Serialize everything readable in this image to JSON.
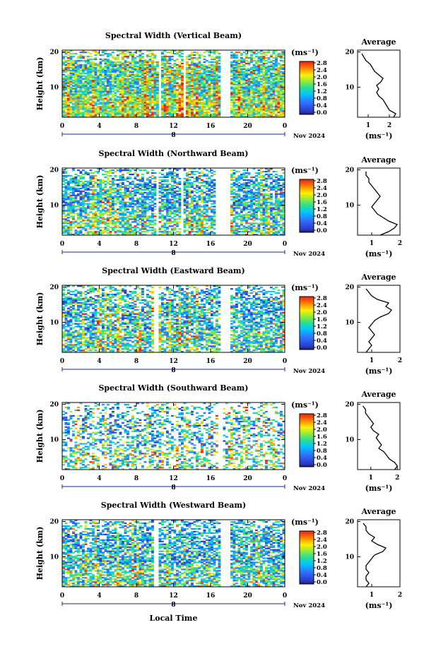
{
  "figure": {
    "date_label": "Nov 2024",
    "day_label": "8",
    "xlabel": "Local Time",
    "ylabel": "Height (km)",
    "unit": "(ms⁻¹)",
    "avg_title": "Average",
    "avg_xlabel": "(ms⁻¹)"
  },
  "chart_data": [
    {
      "type": "heatmap",
      "title": "Spectral Width (Vertical Beam)",
      "xlabel": "",
      "ylabel": "Height (km)",
      "xticks": [
        "0",
        "4",
        "8",
        "12",
        "16",
        "20",
        "0"
      ],
      "yticks": [
        "10",
        "20"
      ],
      "xlim": [
        0,
        24
      ],
      "ylim": [
        1.5,
        20.5
      ],
      "colorbar": {
        "ticks": [
          "2.8",
          "2.4",
          "2.0",
          "1.6",
          "1.2",
          "0.8",
          "0.4",
          "0.0"
        ],
        "range": [
          0,
          3
        ]
      },
      "gaps": [
        [
          10.4,
          10.7
        ],
        [
          13.2,
          13.4
        ],
        [
          17.1,
          18.0
        ]
      ],
      "average": {
        "xticks": [
          "1",
          "2"
        ],
        "xlim": [
          0.5,
          2.5
        ],
        "yticks": [
          "10",
          "20"
        ],
        "profile": [
          [
            2.2,
            1.5
          ],
          [
            2.3,
            2.5
          ],
          [
            2.0,
            3.5
          ],
          [
            1.9,
            4.5
          ],
          [
            1.8,
            5.5
          ],
          [
            1.7,
            6.5
          ],
          [
            1.5,
            7.5
          ],
          [
            1.4,
            8.5
          ],
          [
            1.5,
            9.5
          ],
          [
            1.4,
            10.5
          ],
          [
            1.6,
            11.5
          ],
          [
            1.7,
            12.5
          ],
          [
            1.5,
            13.5
          ],
          [
            1.3,
            14.5
          ],
          [
            1.2,
            15.5
          ],
          [
            1.1,
            16.5
          ],
          [
            0.9,
            17.5
          ],
          [
            0.8,
            18.5
          ],
          [
            0.7,
            19.5
          ]
        ]
      }
    },
    {
      "type": "heatmap",
      "title": "Spectral Width (Northward Beam)",
      "xlabel": "",
      "ylabel": "Height (km)",
      "xticks": [
        "0",
        "4",
        "8",
        "12",
        "16",
        "20",
        "0"
      ],
      "yticks": [
        "10",
        "20"
      ],
      "xlim": [
        0,
        24
      ],
      "ylim": [
        1.5,
        20.5
      ],
      "colorbar": {
        "ticks": [
          "2.8",
          "2.4",
          "2.0",
          "1.6",
          "1.2",
          "0.8",
          "0.4",
          "0.0"
        ],
        "range": [
          0,
          3
        ]
      },
      "gaps": [
        [
          10.1,
          10.4
        ],
        [
          12.8,
          13.0
        ],
        [
          16.6,
          18.2
        ]
      ],
      "average": {
        "xticks": [
          "1",
          "2"
        ],
        "xlim": [
          0.5,
          2.0
        ],
        "yticks": [
          "10",
          "20"
        ],
        "profile": [
          [
            1.3,
            1.5
          ],
          [
            1.6,
            2.5
          ],
          [
            1.8,
            3.5
          ],
          [
            1.9,
            4.5
          ],
          [
            1.6,
            5.5
          ],
          [
            1.4,
            6.5
          ],
          [
            1.2,
            7.5
          ],
          [
            1.1,
            8.5
          ],
          [
            1.0,
            9.5
          ],
          [
            1.1,
            10.5
          ],
          [
            1.2,
            11.5
          ],
          [
            1.3,
            12.5
          ],
          [
            1.2,
            13.5
          ],
          [
            1.1,
            14.5
          ],
          [
            1.0,
            15.5
          ],
          [
            0.9,
            16.5
          ],
          [
            0.9,
            17.5
          ],
          [
            0.8,
            18.5
          ],
          [
            0.8,
            19.5
          ]
        ]
      }
    },
    {
      "type": "heatmap",
      "title": "Spectral Width (Eastward Beam)",
      "xlabel": "",
      "ylabel": "Height (km)",
      "xticks": [
        "0",
        "4",
        "8",
        "12",
        "16",
        "20",
        "0"
      ],
      "yticks": [
        "10",
        "20"
      ],
      "xlim": [
        0,
        24
      ],
      "ylim": [
        1.5,
        20.5
      ],
      "colorbar": {
        "ticks": [
          "2.8",
          "2.4",
          "2.0",
          "1.6",
          "1.2",
          "0.8",
          "0.4",
          "0.0"
        ],
        "range": [
          0,
          3
        ]
      },
      "gaps": [
        [
          10.0,
          10.3
        ],
        [
          13.0,
          13.2
        ],
        [
          17.2,
          18.0
        ]
      ],
      "average": {
        "xticks": [
          "1",
          "2"
        ],
        "xlim": [
          0.5,
          2.0
        ],
        "yticks": [
          "10",
          "20"
        ],
        "profile": [
          [
            0.8,
            1.5
          ],
          [
            0.9,
            2.5
          ],
          [
            1.0,
            3.5
          ],
          [
            0.9,
            4.5
          ],
          [
            1.0,
            5.5
          ],
          [
            1.1,
            6.5
          ],
          [
            1.0,
            7.5
          ],
          [
            0.9,
            8.5
          ],
          [
            1.0,
            9.5
          ],
          [
            1.1,
            10.5
          ],
          [
            1.3,
            11.5
          ],
          [
            1.6,
            12.5
          ],
          [
            1.7,
            13.5
          ],
          [
            1.5,
            14.5
          ],
          [
            1.6,
            15.5
          ],
          [
            1.2,
            16.5
          ],
          [
            1.0,
            17.5
          ],
          [
            0.9,
            18.5
          ],
          [
            0.8,
            19.5
          ]
        ]
      }
    },
    {
      "type": "heatmap",
      "title": "Spectral Width (Southward Beam)",
      "xlabel": "",
      "ylabel": "Height (km)",
      "xticks": [
        "0",
        "4",
        "8",
        "12",
        "16",
        "20",
        "0"
      ],
      "yticks": [
        "10",
        "20"
      ],
      "xlim": [
        0,
        24
      ],
      "ylim": [
        1.5,
        20.5
      ],
      "colorbar": {
        "ticks": [
          "2.8",
          "2.4",
          "2.0",
          "1.6",
          "1.2",
          "0.8",
          "0.4",
          "0.0"
        ],
        "range": [
          0,
          3
        ]
      },
      "gaps": [
        [
          16.7,
          17.4
        ]
      ],
      "average": {
        "xticks": [
          "1",
          "2"
        ],
        "xlim": [
          0.5,
          2.1
        ],
        "yticks": [
          "10",
          "20"
        ],
        "profile": [
          [
            1.9,
            1.5
          ],
          [
            2.0,
            2.5
          ],
          [
            1.9,
            3.5
          ],
          [
            1.7,
            4.5
          ],
          [
            1.6,
            5.5
          ],
          [
            1.5,
            6.5
          ],
          [
            1.3,
            7.5
          ],
          [
            1.4,
            8.5
          ],
          [
            1.3,
            9.5
          ],
          [
            1.2,
            10.5
          ],
          [
            1.3,
            11.5
          ],
          [
            1.1,
            12.5
          ],
          [
            1.0,
            13.5
          ],
          [
            1.1,
            14.5
          ],
          [
            1.0,
            15.5
          ],
          [
            0.9,
            16.5
          ],
          [
            0.8,
            17.5
          ],
          [
            0.8,
            18.5
          ],
          [
            0.7,
            19.5
          ]
        ]
      }
    },
    {
      "type": "heatmap",
      "title": "Spectral Width (Westward Beam)",
      "xlabel": "Local Time",
      "ylabel": "Height (km)",
      "xticks": [
        "0",
        "4",
        "8",
        "12",
        "16",
        "20",
        "0"
      ],
      "yticks": [
        "10",
        "20"
      ],
      "xlim": [
        0,
        24
      ],
      "ylim": [
        1.5,
        20.5
      ],
      "colorbar": {
        "ticks": [
          "2.8",
          "2.4",
          "2.0",
          "1.6",
          "1.2",
          "0.8",
          "0.4",
          "0.0"
        ],
        "range": [
          0,
          3
        ]
      },
      "gaps": [
        [
          10.0,
          10.3
        ],
        [
          13.0,
          13.2
        ],
        [
          17.1,
          18.0
        ]
      ],
      "average": {
        "xticks": [
          "1",
          "2"
        ],
        "xlim": [
          0.5,
          2.0
        ],
        "yticks": [
          "10",
          "20"
        ],
        "profile": [
          [
            0.8,
            1.5
          ],
          [
            0.9,
            2.5
          ],
          [
            0.8,
            3.5
          ],
          [
            0.8,
            4.5
          ],
          [
            0.9,
            5.5
          ],
          [
            0.8,
            6.5
          ],
          [
            0.8,
            7.5
          ],
          [
            0.9,
            8.5
          ],
          [
            1.0,
            9.5
          ],
          [
            1.1,
            10.5
          ],
          [
            1.4,
            11.5
          ],
          [
            1.5,
            12.5
          ],
          [
            1.2,
            13.5
          ],
          [
            1.0,
            14.5
          ],
          [
            1.1,
            15.5
          ],
          [
            0.9,
            16.5
          ],
          [
            0.8,
            17.5
          ],
          [
            0.8,
            18.5
          ],
          [
            0.7,
            19.5
          ]
        ]
      }
    }
  ]
}
